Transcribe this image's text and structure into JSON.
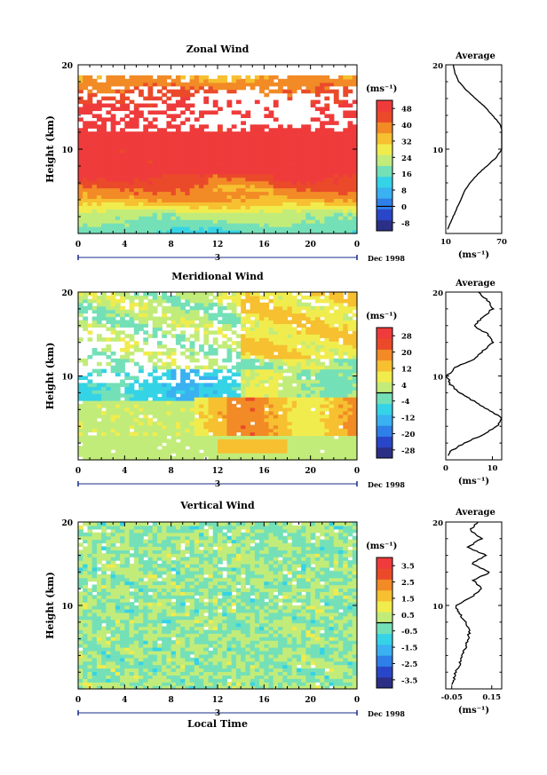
{
  "chart_data": [
    {
      "type": "heatmap",
      "title": "Zonal Wind",
      "ylabel": "Height (km)",
      "x_ticks": [
        "0",
        "4",
        "8",
        "12",
        "16",
        "20",
        "0"
      ],
      "y_ticks": [
        "10",
        "20"
      ],
      "xlim": [
        0,
        24
      ],
      "ylim": [
        0,
        20
      ],
      "day_label": "3",
      "date_label": "Dec 1998",
      "colorbar": {
        "unit": "(ms⁻¹)",
        "ticks": [
          "48",
          "40",
          "32",
          "24",
          "16",
          "8",
          "0",
          "-8"
        ],
        "range": [
          -12,
          52
        ]
      },
      "average": {
        "title": "Average",
        "x_ticks": [
          "10",
          "70"
        ],
        "xlim": [
          10,
          70
        ],
        "y_ticks": [
          "10",
          "20"
        ],
        "unit": "(ms⁻¹)",
        "height_km": [
          0.5,
          1,
          2,
          3,
          4,
          5,
          6,
          7,
          8,
          9,
          10,
          11,
          12,
          13,
          14,
          15,
          16,
          17,
          18,
          19,
          20
        ],
        "values": [
          12,
          14,
          18,
          22,
          26,
          30,
          36,
          44,
          54,
          64,
          70,
          72,
          71,
          68,
          60,
          52,
          42,
          32,
          24,
          20,
          18
        ]
      }
    },
    {
      "type": "heatmap",
      "title": "Meridional Wind",
      "ylabel": "Height (km)",
      "x_ticks": [
        "0",
        "4",
        "8",
        "12",
        "16",
        "20",
        "0"
      ],
      "y_ticks": [
        "10",
        "20"
      ],
      "xlim": [
        0,
        24
      ],
      "ylim": [
        0,
        20
      ],
      "day_label": "3",
      "date_label": "Dec 1998",
      "colorbar": {
        "unit": "(ms⁻¹)",
        "ticks": [
          "28",
          "20",
          "12",
          "4",
          "-4",
          "-12",
          "-20",
          "-28"
        ],
        "range": [
          -32,
          32
        ]
      },
      "average": {
        "title": "Average",
        "x_ticks": [
          "0",
          "10"
        ],
        "xlim": [
          0,
          12
        ],
        "y_ticks": [
          "10",
          "20"
        ],
        "unit": "(ms⁻¹)",
        "height_km": [
          0.5,
          1,
          2,
          3,
          4,
          5,
          6,
          7,
          8,
          9,
          10,
          11,
          12,
          13,
          14,
          15,
          16,
          17,
          18,
          19,
          20
        ],
        "values": [
          0.5,
          1,
          4,
          8,
          11,
          12,
          9,
          6,
          3,
          1,
          0.3,
          2,
          6,
          8,
          10,
          9,
          6,
          8,
          10,
          9,
          7
        ]
      }
    },
    {
      "type": "heatmap",
      "title": "Vertical Wind",
      "ylabel": "Height (km)",
      "xlabel": "Local Time",
      "x_ticks": [
        "0",
        "4",
        "8",
        "12",
        "16",
        "20",
        "0"
      ],
      "y_ticks": [
        "10",
        "20"
      ],
      "xlim": [
        0,
        24
      ],
      "ylim": [
        0,
        20
      ],
      "day_label": "3",
      "date_label": "Dec 1998",
      "colorbar": {
        "unit": "(ms⁻¹)",
        "ticks": [
          "3.5",
          "2.5",
          "1.5",
          "0.5",
          "-0.5",
          "-1.5",
          "-2.5",
          "-3.5"
        ],
        "range": [
          -4,
          4
        ]
      },
      "average": {
        "title": "Average",
        "x_ticks": [
          "-0.05",
          "0.15"
        ],
        "xlim": [
          -0.08,
          0.2
        ],
        "y_ticks": [
          "10",
          "20"
        ],
        "unit": "(ms⁻¹)",
        "height_km": [
          0.5,
          1,
          2,
          3,
          4,
          5,
          6,
          7,
          8,
          9,
          10,
          11,
          12,
          13,
          14,
          15,
          16,
          17,
          18,
          19,
          20
        ],
        "values": [
          -0.05,
          -0.04,
          -0.03,
          -0.01,
          0.0,
          0.02,
          0.03,
          0.04,
          0.02,
          -0.01,
          -0.03,
          0.05,
          0.1,
          0.06,
          0.14,
          0.05,
          0.12,
          0.03,
          0.1,
          0.04,
          0.08
        ]
      }
    }
  ]
}
